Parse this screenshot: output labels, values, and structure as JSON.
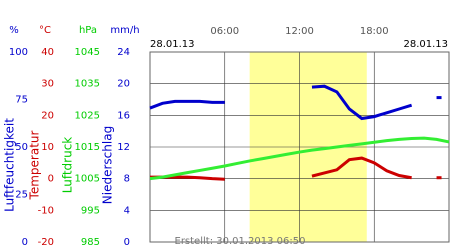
{
  "chart_data": {
    "type": "line",
    "date_left": "28.01.13",
    "date_right": "28.01.13",
    "footer": "Erstellt: 30.01.2013 06:50",
    "xlim": [
      0,
      24
    ],
    "xticks": [
      {
        "value": 6,
        "label": "06:00"
      },
      {
        "value": 12,
        "label": "12:00"
      },
      {
        "value": 18,
        "label": "18:00"
      }
    ],
    "shaded_x": [
      8,
      17.4
    ],
    "shade_color": "#ffff99",
    "grid": true,
    "axes": [
      {
        "unit": "%",
        "name": "Luftfeuchtigkeit",
        "color": "#0000cc",
        "ylim": [
          0,
          100
        ],
        "yticks": [
          0,
          25,
          50,
          75,
          100
        ]
      },
      {
        "unit": "°C",
        "name": "Temperatur",
        "color": "#cc0000",
        "ylim": [
          -20,
          40
        ],
        "yticks": [
          -20,
          -10,
          0,
          10,
          20,
          30,
          40
        ]
      },
      {
        "unit": "hPa",
        "name": "Luftdruck",
        "color": "#00cc00",
        "ylim": [
          985,
          1045
        ],
        "yticks": [
          985,
          995,
          1005,
          1015,
          1025,
          1035,
          1045
        ]
      },
      {
        "unit": "mm/h",
        "name": "Niederschlag",
        "color": "#0000cc",
        "ylim": [
          0,
          24
        ],
        "yticks": [
          0,
          4,
          8,
          12,
          16,
          20,
          24
        ]
      }
    ],
    "x": [
      0,
      1,
      2,
      3,
      4,
      5,
      6,
      7,
      8,
      9,
      10,
      11,
      12,
      13,
      14,
      15,
      16,
      17,
      18,
      19,
      20,
      21,
      22,
      23,
      24
    ],
    "series": [
      {
        "name": "Luftfeuchtigkeit",
        "axis": 0,
        "color": "#0000cc",
        "values": [
          70.5,
          73,
          74,
          74,
          74,
          73.5,
          73.5,
          null,
          null,
          null,
          null,
          null,
          null,
          81.5,
          82,
          79,
          70,
          65,
          66,
          68,
          70,
          72,
          null,
          76,
          null
        ]
      },
      {
        "name": "Temperatur",
        "axis": 1,
        "color": "#cc0000",
        "values": [
          0.5,
          0.5,
          0.5,
          0.5,
          0.3,
          0,
          -0.2,
          null,
          null,
          null,
          null,
          null,
          null,
          0.8,
          1.8,
          2.8,
          6,
          6.5,
          5,
          2.5,
          1,
          0.3,
          null,
          0.3,
          null
        ]
      },
      {
        "name": "Luftdruck",
        "axis": 2,
        "color": "#33ee33",
        "values": [
          1005,
          1005.5,
          1006.2,
          1006.9,
          1007.6,
          1008.3,
          1009,
          1009.8,
          1010.6,
          1011.3,
          1012,
          1012.7,
          1013.4,
          1014,
          1014.5,
          1015,
          1015.5,
          1016,
          1016.5,
          1017,
          1017.4,
          1017.7,
          1017.8,
          1017.4,
          1016.6
        ]
      }
    ]
  }
}
